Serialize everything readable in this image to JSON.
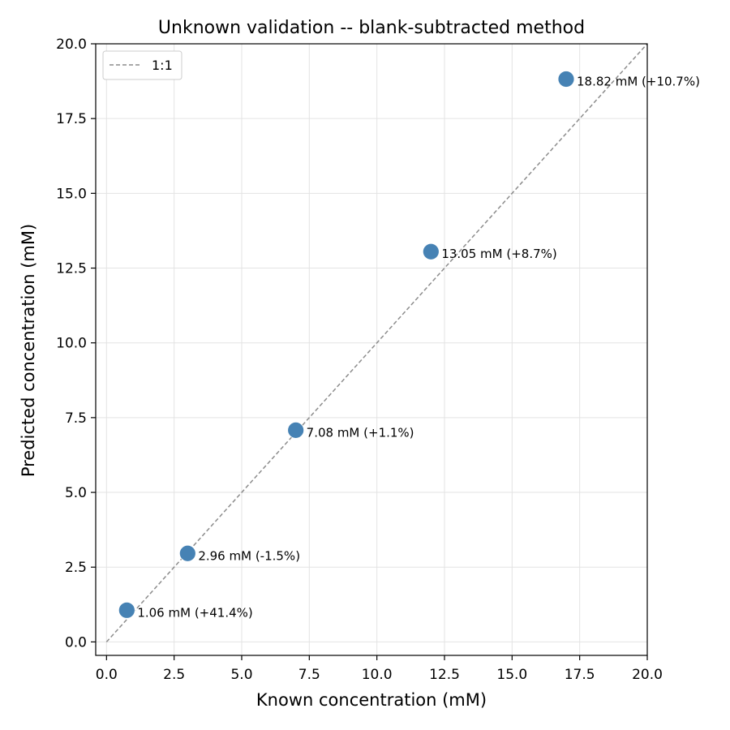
{
  "chart_data": {
    "type": "scatter",
    "title": "Unknown validation -- blank-subtracted method",
    "xlabel": "Known concentration (mM)",
    "ylabel": "Predicted concentration (mM)",
    "xlim": [
      -0.4,
      20.0
    ],
    "ylim": [
      -0.45,
      20.0
    ],
    "xticks": [
      0.0,
      2.5,
      5.0,
      7.5,
      10.0,
      12.5,
      15.0,
      17.5,
      20.0
    ],
    "yticks": [
      0.0,
      2.5,
      5.0,
      7.5,
      10.0,
      12.5,
      15.0,
      17.5,
      20.0
    ],
    "grid": true,
    "legend_position": "top-left",
    "reference_line": {
      "label": "1:1",
      "from": [
        0,
        0
      ],
      "to": [
        20,
        20
      ],
      "style": "dashed",
      "color": "#8c8c8c"
    },
    "series": [
      {
        "color": "#4682b4",
        "points": [
          {
            "x": 0.75,
            "y": 1.06,
            "label": "1.06 mM (+41.4%)"
          },
          {
            "x": 3.0,
            "y": 2.96,
            "label": "2.96 mM (-1.5%)"
          },
          {
            "x": 7.0,
            "y": 7.08,
            "label": "7.08 mM (+1.1%)"
          },
          {
            "x": 12.0,
            "y": 13.05,
            "label": "13.05 mM (+8.7%)"
          },
          {
            "x": 17.0,
            "y": 18.82,
            "label": "18.82 mM (+10.7%)"
          }
        ]
      }
    ]
  }
}
